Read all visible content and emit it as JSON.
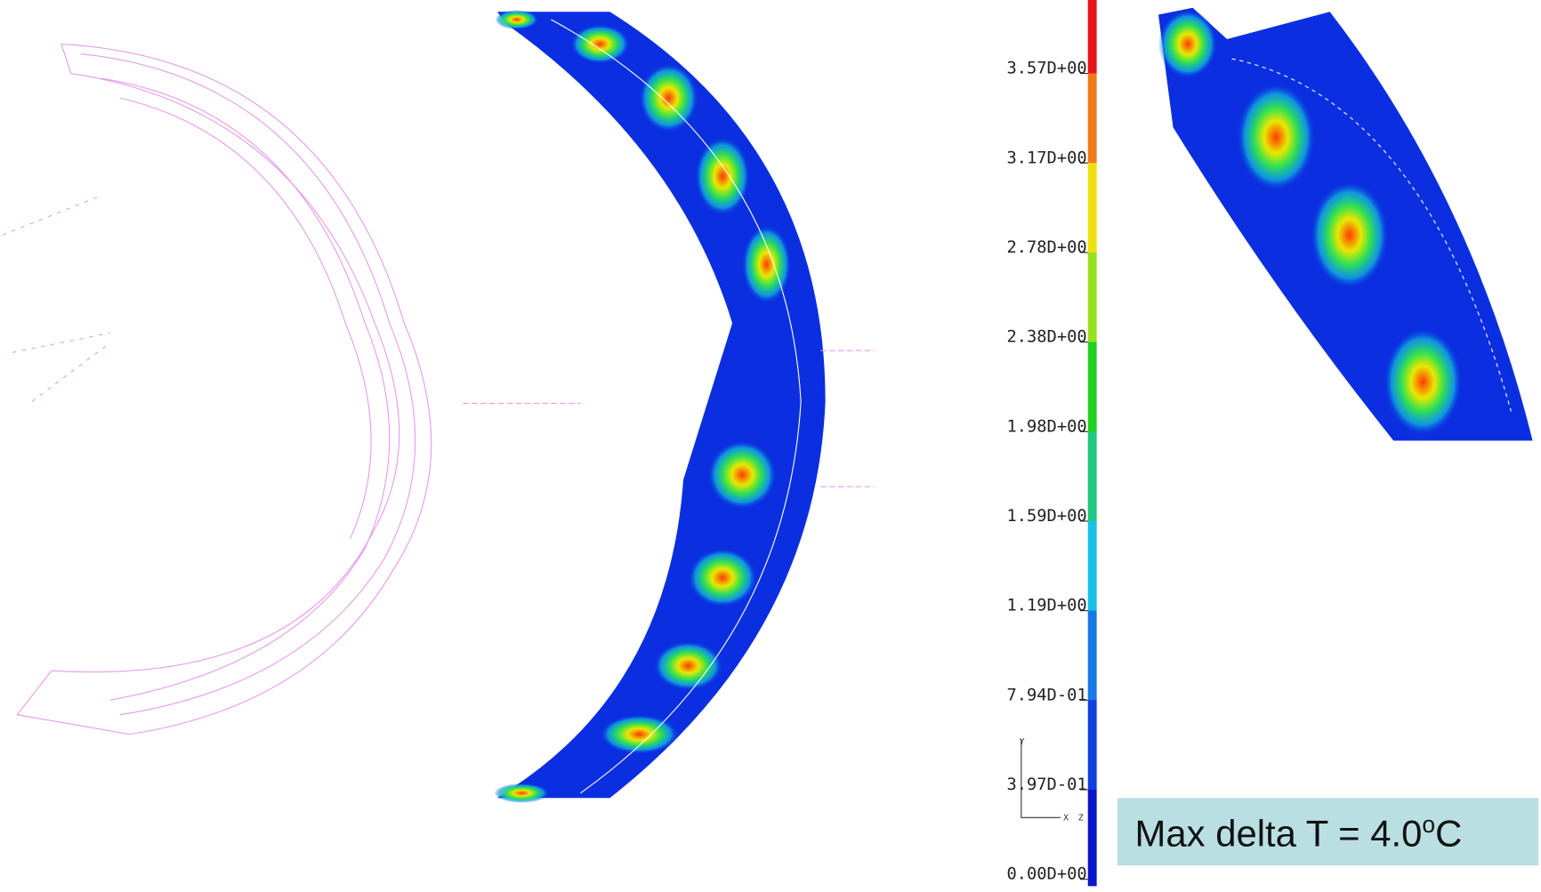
{
  "legend": {
    "labels": [
      "3.57D+00",
      "3.17D+00",
      "2.78D+00",
      "2.38D+00",
      "1.98D+00",
      "1.59D+00",
      "1.19D+00",
      "7.94D-01",
      "3.97D-01",
      "0.00D+00"
    ]
  },
  "triad": {
    "y": "Y",
    "x": "X",
    "z": "Z"
  },
  "annotation": {
    "text": "Max delta T = 4.0",
    "superscript": "o",
    "unit": "C"
  }
}
